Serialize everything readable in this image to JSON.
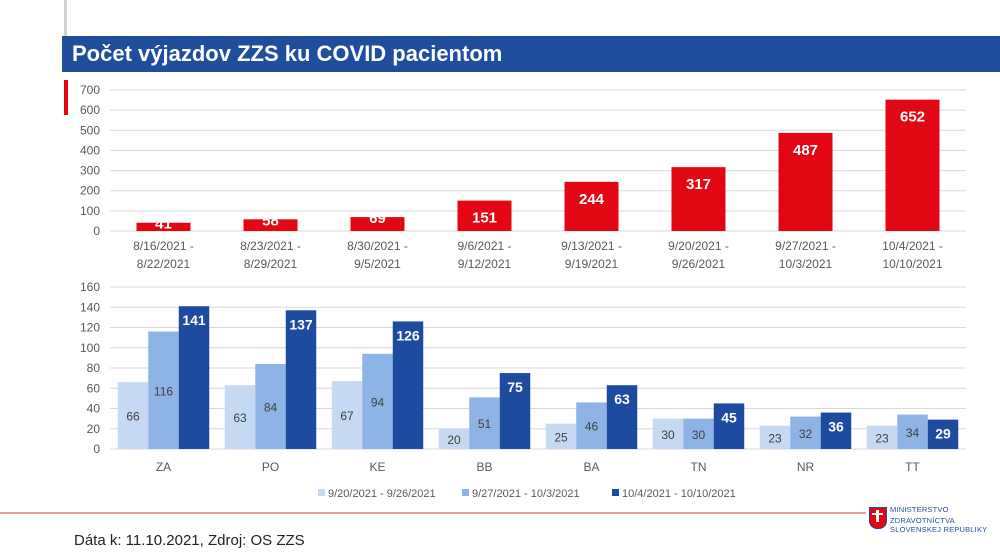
{
  "title": "Počet výjazdov ZZS ku COVID pacientom",
  "footer": "Dáta k: 11.10.2021, Zdroj: OS ZZS",
  "logo": {
    "line1": "MINISTERSTVO",
    "line2": "ZDRAVOTNÍCTVA",
    "line3": "SLOVENSKEJ REPUBLIKY"
  },
  "chart_data": [
    {
      "type": "bar",
      "categories": [
        [
          "8/16/2021 -",
          "8/22/2021"
        ],
        [
          "8/23/2021 -",
          "8/29/2021"
        ],
        [
          "8/30/2021 -",
          "9/5/2021"
        ],
        [
          "9/6/2021 -",
          "9/12/2021"
        ],
        [
          "9/13/2021 -",
          "9/19/2021"
        ],
        [
          "9/20/2021 -",
          "9/26/2021"
        ],
        [
          "9/27/2021 -",
          "10/3/2021"
        ],
        [
          "10/4/2021 -",
          "10/10/2021"
        ]
      ],
      "values": [
        41,
        58,
        69,
        151,
        244,
        317,
        487,
        652
      ],
      "ylim": [
        0,
        700
      ],
      "yticks": [
        0,
        100,
        200,
        300,
        400,
        500,
        600,
        700
      ],
      "grid": true,
      "color": "#e30613"
    },
    {
      "type": "bar",
      "categories": [
        "ZA",
        "PO",
        "KE",
        "BB",
        "BA",
        "TN",
        "NR",
        "TT"
      ],
      "series": [
        {
          "name": "9/20/2021 - 9/26/2021",
          "values": [
            66,
            63,
            67,
            20,
            25,
            30,
            23,
            23
          ],
          "color": "#c6d9f3"
        },
        {
          "name": "9/27/2021 - 10/3/2021",
          "values": [
            116,
            84,
            94,
            51,
            46,
            30,
            32,
            34
          ],
          "color": "#8db4e5"
        },
        {
          "name": "10/4/2021 - 10/10/2021",
          "values": [
            141,
            137,
            126,
            75,
            63,
            45,
            36,
            29
          ],
          "color": "#1c4ba0"
        }
      ],
      "ylim": [
        0,
        160
      ],
      "yticks": [
        0,
        20,
        40,
        60,
        80,
        100,
        120,
        140,
        160
      ],
      "grid": true,
      "legend": "bottom"
    }
  ]
}
